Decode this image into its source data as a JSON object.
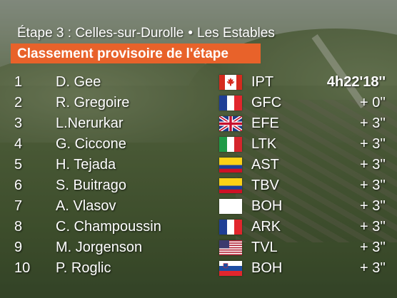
{
  "header": {
    "stage": "Étape 3 : Celles-sur-Durolle",
    "separator": "•",
    "destination": "Les Estables",
    "banner": "Classement provisoire de l'étape"
  },
  "rows": [
    {
      "pos": "1",
      "name": "D. Gee",
      "flag": "canada-flag-icon",
      "team": "IPT",
      "time": "4h22'18''"
    },
    {
      "pos": "2",
      "name": "R. Gregoire",
      "flag": "france-flag-icon",
      "team": "GFC",
      "time": "+  0''"
    },
    {
      "pos": "3",
      "name": "L.Nerurkar",
      "flag": "uk-flag-icon",
      "team": "EFE",
      "time": "+  3''"
    },
    {
      "pos": "4",
      "name": "G. Ciccone",
      "flag": "italy-flag-icon",
      "team": "LTK",
      "time": "+  3''"
    },
    {
      "pos": "5",
      "name": "H. Tejada",
      "flag": "colombia-flag-icon",
      "team": "AST",
      "time": "+  3''"
    },
    {
      "pos": "6",
      "name": "S. Buitrago",
      "flag": "colombia-flag-icon",
      "team": "TBV",
      "time": "+  3''"
    },
    {
      "pos": "7",
      "name": "A. Vlasov",
      "flag": "blank-flag-icon",
      "team": "BOH",
      "time": "+  3''"
    },
    {
      "pos": "8",
      "name": "C. Champoussin",
      "flag": "france-flag-icon",
      "team": "ARK",
      "time": "+  3''"
    },
    {
      "pos": "9",
      "name": "M. Jorgenson",
      "flag": "usa-flag-icon",
      "team": "TVL",
      "time": "+  3''"
    },
    {
      "pos": "10",
      "name": "P. Roglic",
      "flag": "slovenia-flag-icon",
      "team": "BOH",
      "time": "+  3''"
    }
  ],
  "colors": {
    "banner": "#e8622a",
    "text": "#ffffff"
  }
}
